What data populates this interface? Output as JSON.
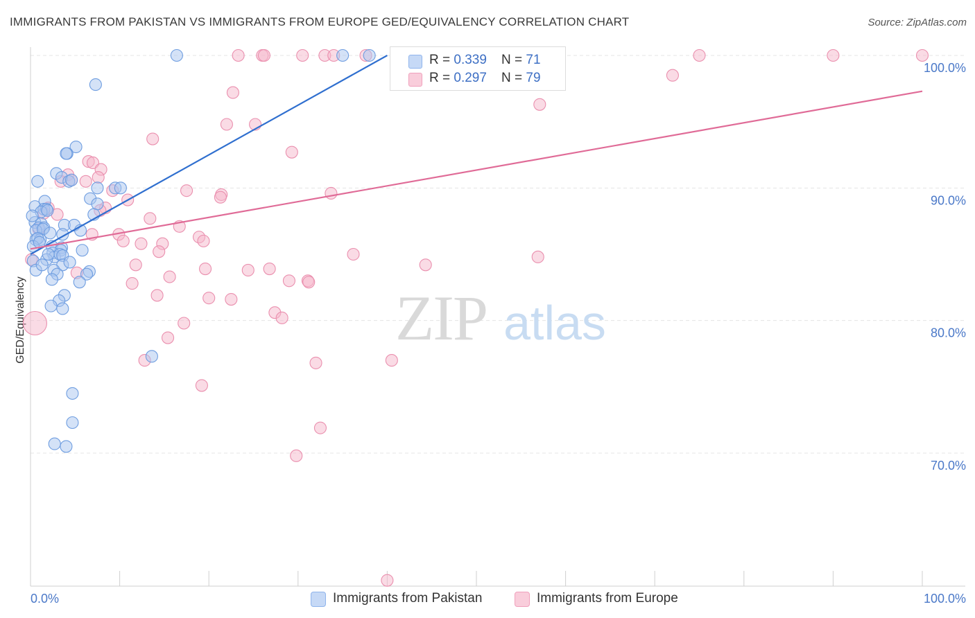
{
  "title": "IMMIGRANTS FROM PAKISTAN VS IMMIGRANTS FROM EUROPE GED/EQUIVALENCY CORRELATION CHART",
  "source": "Source: ZipAtlas.com",
  "watermark": {
    "zip": "ZIP",
    "atlas": "atlas"
  },
  "legend": {
    "r_label": "R = ",
    "n_label": "N = ",
    "rows": [
      {
        "r": "0.339",
        "n": "71",
        "color": "#8fb4ec",
        "fill": "#c6d9f6"
      },
      {
        "r": "0.297",
        "n": "79",
        "color": "#f0a0bc",
        "fill": "#f9cddb"
      }
    ]
  },
  "bottom_legend": [
    "Immigrants from Pakistan",
    "Immigrants from Europe"
  ],
  "colors": {
    "pakistan_fill": "#a9c6f0",
    "pakistan_stroke": "#6e9de0",
    "pakistan_line": "#2f6fcf",
    "europe_fill": "#f6b8cb",
    "europe_stroke": "#ea8fae",
    "europe_line": "#e06b97",
    "grid": "#e4e4e4",
    "tick_text": "#4a78c8"
  },
  "chart_data": {
    "type": "scatter",
    "ylabel": "GED/Equivalency",
    "xlabel": "",
    "xlim": [
      0,
      100
    ],
    "ylim": [
      60,
      101
    ],
    "x_tick_labels": [
      "0.0%",
      "100.0%"
    ],
    "y_ticks": [
      70,
      80,
      90,
      100
    ],
    "y_tick_labels": [
      "70.0%",
      "80.0%",
      "90.0%",
      "100.0%"
    ],
    "grid": true,
    "legend_position": "top-center",
    "series": [
      {
        "name": "Immigrants from Pakistan",
        "R": 0.339,
        "N": 71,
        "trend": [
          [
            0,
            85.0
          ],
          [
            40,
            100.0
          ]
        ],
        "points": [
          [
            16.4,
            100
          ],
          [
            35.0,
            100
          ],
          [
            7.3,
            97.8
          ],
          [
            5.1,
            93.1
          ],
          [
            4.1,
            92.6
          ],
          [
            4.0,
            92.6
          ],
          [
            2.9,
            91.1
          ],
          [
            3.5,
            90.8
          ],
          [
            0.8,
            90.5
          ],
          [
            4.3,
            90.5
          ],
          [
            4.6,
            90.6
          ],
          [
            7.5,
            90.0
          ],
          [
            9.5,
            90.0
          ],
          [
            10.1,
            90.0
          ],
          [
            6.7,
            89.2
          ],
          [
            1.6,
            89.0
          ],
          [
            0.5,
            88.6
          ],
          [
            1.5,
            88.4
          ],
          [
            1.8,
            88.4
          ],
          [
            1.2,
            88.2
          ],
          [
            1.9,
            88.3
          ],
          [
            7.5,
            88.8
          ],
          [
            7.1,
            88.0
          ],
          [
            0.5,
            87.4
          ],
          [
            1.2,
            87.3
          ],
          [
            0.9,
            87.0
          ],
          [
            1.5,
            87.0
          ],
          [
            0.6,
            86.8
          ],
          [
            1.4,
            86.9
          ],
          [
            3.8,
            87.2
          ],
          [
            4.9,
            87.2
          ],
          [
            5.6,
            86.8
          ],
          [
            3.6,
            86.5
          ],
          [
            0.6,
            86.1
          ],
          [
            1.1,
            86.1
          ],
          [
            0.8,
            86.2
          ],
          [
            2.4,
            85.6
          ],
          [
            3.5,
            85.5
          ],
          [
            3.4,
            85.3
          ],
          [
            5.8,
            85.3
          ],
          [
            2.5,
            85.1
          ],
          [
            2.7,
            84.8
          ],
          [
            3.3,
            85.0
          ],
          [
            3.6,
            84.9
          ],
          [
            0.3,
            84.5
          ],
          [
            1.8,
            84.6
          ],
          [
            3.6,
            84.2
          ],
          [
            2.6,
            83.8
          ],
          [
            0.6,
            83.8
          ],
          [
            6.6,
            83.7
          ],
          [
            6.3,
            83.5
          ],
          [
            3.0,
            83.5
          ],
          [
            2.4,
            83.1
          ],
          [
            5.5,
            82.9
          ],
          [
            3.8,
            81.9
          ],
          [
            3.2,
            81.5
          ],
          [
            2.3,
            81.1
          ],
          [
            3.6,
            80.9
          ],
          [
            13.6,
            77.3
          ],
          [
            4.7,
            74.5
          ],
          [
            4.7,
            72.3
          ],
          [
            2.7,
            70.7
          ],
          [
            4.0,
            70.5
          ],
          [
            38.0,
            100
          ],
          [
            0.3,
            85.6
          ],
          [
            1.0,
            85.9
          ],
          [
            2.0,
            85.0
          ],
          [
            4.4,
            84.4
          ],
          [
            1.3,
            84.2
          ],
          [
            2.2,
            86.6
          ],
          [
            0.2,
            87.9
          ]
        ]
      },
      {
        "name": "Immigrants from Europe",
        "R": 0.297,
        "N": 79,
        "trend": [
          [
            0,
            85.4
          ],
          [
            100,
            97.3
          ]
        ],
        "points": [
          [
            23.3,
            100
          ],
          [
            26.0,
            100
          ],
          [
            26.2,
            100
          ],
          [
            30.5,
            100
          ],
          [
            33.0,
            100
          ],
          [
            34.0,
            100
          ],
          [
            75.0,
            100
          ],
          [
            90.0,
            100
          ],
          [
            100.0,
            100
          ],
          [
            57.0,
            100
          ],
          [
            55.0,
            100
          ],
          [
            47.0,
            100
          ],
          [
            72.0,
            98.5
          ],
          [
            22.7,
            97.2
          ],
          [
            57.1,
            96.3
          ],
          [
            22.0,
            94.8
          ],
          [
            25.2,
            94.8
          ],
          [
            13.7,
            93.7
          ],
          [
            29.3,
            92.7
          ],
          [
            6.5,
            92.0
          ],
          [
            7.0,
            91.9
          ],
          [
            7.9,
            91.4
          ],
          [
            4.2,
            91.0
          ],
          [
            3.4,
            90.5
          ],
          [
            4.6,
            90.6
          ],
          [
            6.2,
            90.5
          ],
          [
            7.6,
            90.8
          ],
          [
            17.5,
            89.8
          ],
          [
            9.2,
            89.8
          ],
          [
            21.4,
            89.5
          ],
          [
            21.3,
            89.3
          ],
          [
            33.7,
            89.6
          ],
          [
            10.9,
            89.1
          ],
          [
            2.0,
            88.5
          ],
          [
            8.4,
            88.5
          ],
          [
            7.8,
            88.3
          ],
          [
            1.5,
            88.1
          ],
          [
            3.0,
            88.0
          ],
          [
            13.4,
            87.7
          ],
          [
            16.7,
            87.1
          ],
          [
            0.9,
            86.9
          ],
          [
            9.9,
            86.5
          ],
          [
            18.9,
            86.3
          ],
          [
            19.4,
            86.0
          ],
          [
            10.4,
            86.0
          ],
          [
            12.4,
            85.8
          ],
          [
            14.8,
            85.8
          ],
          [
            14.4,
            85.2
          ],
          [
            36.2,
            85.0
          ],
          [
            56.9,
            84.8
          ],
          [
            0.1,
            84.6
          ],
          [
            11.8,
            84.2
          ],
          [
            44.3,
            84.2
          ],
          [
            19.6,
            83.9
          ],
          [
            24.4,
            83.8
          ],
          [
            26.8,
            83.9
          ],
          [
            5.2,
            83.6
          ],
          [
            15.6,
            83.3
          ],
          [
            29.0,
            83.0
          ],
          [
            31.1,
            83.0
          ],
          [
            31.2,
            82.9
          ],
          [
            11.4,
            82.8
          ],
          [
            14.2,
            81.9
          ],
          [
            20.0,
            81.7
          ],
          [
            22.5,
            81.6
          ],
          [
            27.4,
            80.6
          ],
          [
            28.2,
            80.2
          ],
          [
            17.2,
            79.8
          ],
          [
            0.5,
            79.8
          ],
          [
            15.4,
            78.7
          ],
          [
            12.8,
            77.0
          ],
          [
            32.0,
            76.8
          ],
          [
            40.5,
            77.0
          ],
          [
            19.2,
            75.1
          ],
          [
            32.5,
            71.9
          ],
          [
            29.8,
            69.8
          ],
          [
            40.0,
            60.4
          ],
          [
            6.9,
            86.5
          ],
          [
            37.6,
            100
          ]
        ]
      }
    ]
  }
}
